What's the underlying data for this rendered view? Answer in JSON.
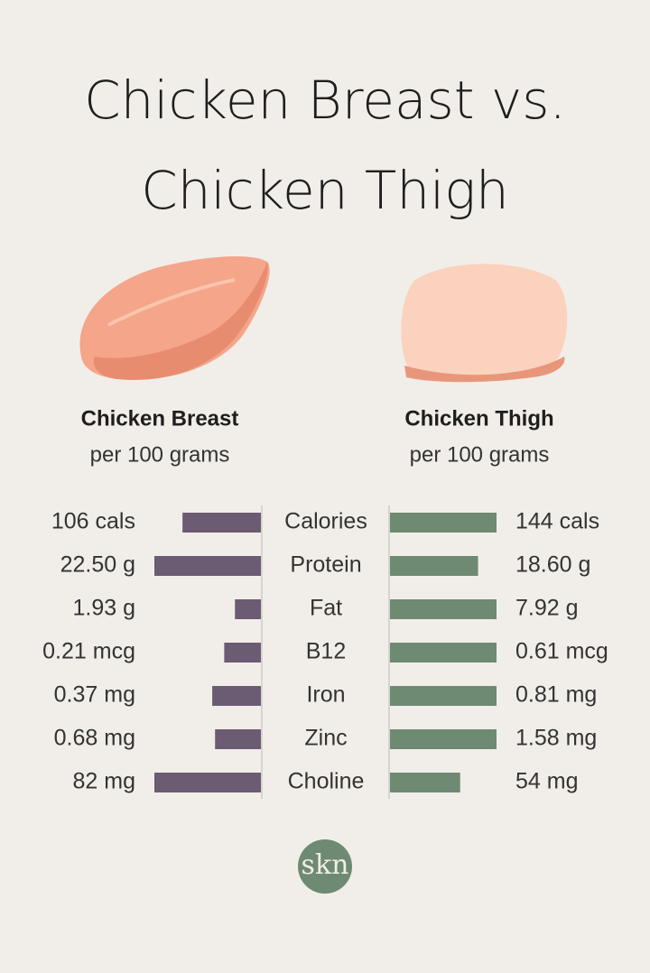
{
  "chart_data": {
    "type": "butterfly",
    "title": [
      "Chicken Breast vs.",
      "Chicken Thigh"
    ],
    "categories": [
      "Calories",
      "Protein",
      "Fat",
      "B12",
      "Iron",
      "Zinc",
      "Choline"
    ],
    "series": [
      {
        "name": "Chicken Breast",
        "note": "per 100 grams",
        "color": "#6b5b73",
        "values": [
          106,
          22.5,
          1.93,
          0.21,
          0.37,
          0.68,
          82
        ],
        "value_labels": [
          "106 cals",
          "22.50 g",
          "1.93 g",
          "0.21 mcg",
          "0.37 mg",
          "0.68 mg",
          "82 mg"
        ]
      },
      {
        "name": "Chicken Thigh",
        "note": "per 100 grams",
        "color": "#6e8a72",
        "values": [
          144,
          18.6,
          7.92,
          0.61,
          0.81,
          1.58,
          54
        ],
        "value_labels": [
          "144 cals",
          "18.60 g",
          "7.92 g",
          "0.61 mcg",
          "0.81 mg",
          "1.58 mg",
          "54 mg"
        ]
      }
    ],
    "logo": "skn"
  }
}
